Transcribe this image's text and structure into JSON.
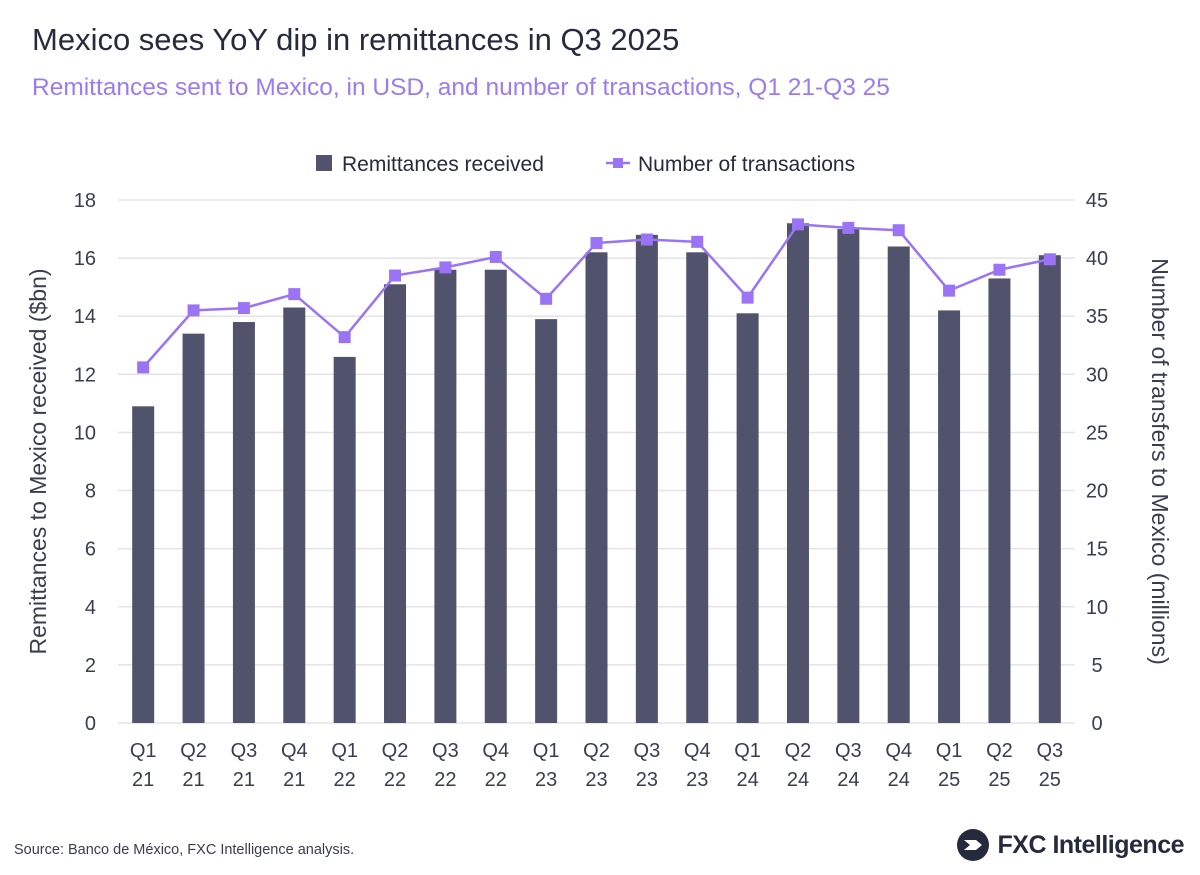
{
  "title": "Mexico sees YoY dip in remittances in Q3 2025",
  "subtitle": "Remittances sent to Mexico, in USD, and number of transactions, Q1 21-Q3 25",
  "source": "Source: Banco de México, FXC Intelligence analysis.",
  "logo_text": "FXC Intelligence",
  "colors": {
    "bars": "#50536b",
    "line": "#9a74f5",
    "grid": "#e3e3e8"
  },
  "chart_data": {
    "type": "bar+line",
    "categories": [
      [
        "Q1",
        "21"
      ],
      [
        "Q2",
        "21"
      ],
      [
        "Q3",
        "21"
      ],
      [
        "Q4",
        "21"
      ],
      [
        "Q1",
        "22"
      ],
      [
        "Q2",
        "22"
      ],
      [
        "Q3",
        "22"
      ],
      [
        "Q4",
        "22"
      ],
      [
        "Q1",
        "23"
      ],
      [
        "Q2",
        "23"
      ],
      [
        "Q3",
        "23"
      ],
      [
        "Q4",
        "23"
      ],
      [
        "Q1",
        "24"
      ],
      [
        "Q2",
        "24"
      ],
      [
        "Q3",
        "24"
      ],
      [
        "Q4",
        "24"
      ],
      [
        "Q1",
        "25"
      ],
      [
        "Q2",
        "25"
      ],
      [
        "Q3",
        "25"
      ]
    ],
    "series": [
      {
        "name": "Remittances received",
        "type": "bar",
        "axis": "left",
        "values": [
          10.9,
          13.4,
          13.8,
          14.3,
          12.6,
          15.1,
          15.6,
          15.6,
          13.9,
          16.2,
          16.8,
          16.2,
          14.1,
          17.2,
          17.0,
          16.4,
          14.2,
          15.3,
          16.1
        ]
      },
      {
        "name": "Number of transactions",
        "type": "line",
        "axis": "right",
        "values": [
          30.6,
          35.5,
          35.7,
          36.9,
          33.2,
          38.5,
          39.2,
          40.1,
          36.5,
          41.3,
          41.6,
          41.4,
          36.6,
          42.9,
          42.6,
          42.4,
          37.2,
          39.0,
          39.9
        ]
      }
    ],
    "ylabel": "Remittances to Mexico received ($bn)",
    "y2label": "Number of transfers to Mexico (millions)",
    "ylim": [
      0,
      18
    ],
    "yticks": [
      0,
      2,
      4,
      6,
      8,
      10,
      12,
      14,
      16,
      18
    ],
    "y2lim": [
      0,
      45
    ],
    "y2ticks": [
      0,
      5,
      10,
      15,
      20,
      25,
      30,
      35,
      40,
      45
    ],
    "grid": true,
    "legend": "top-center"
  }
}
